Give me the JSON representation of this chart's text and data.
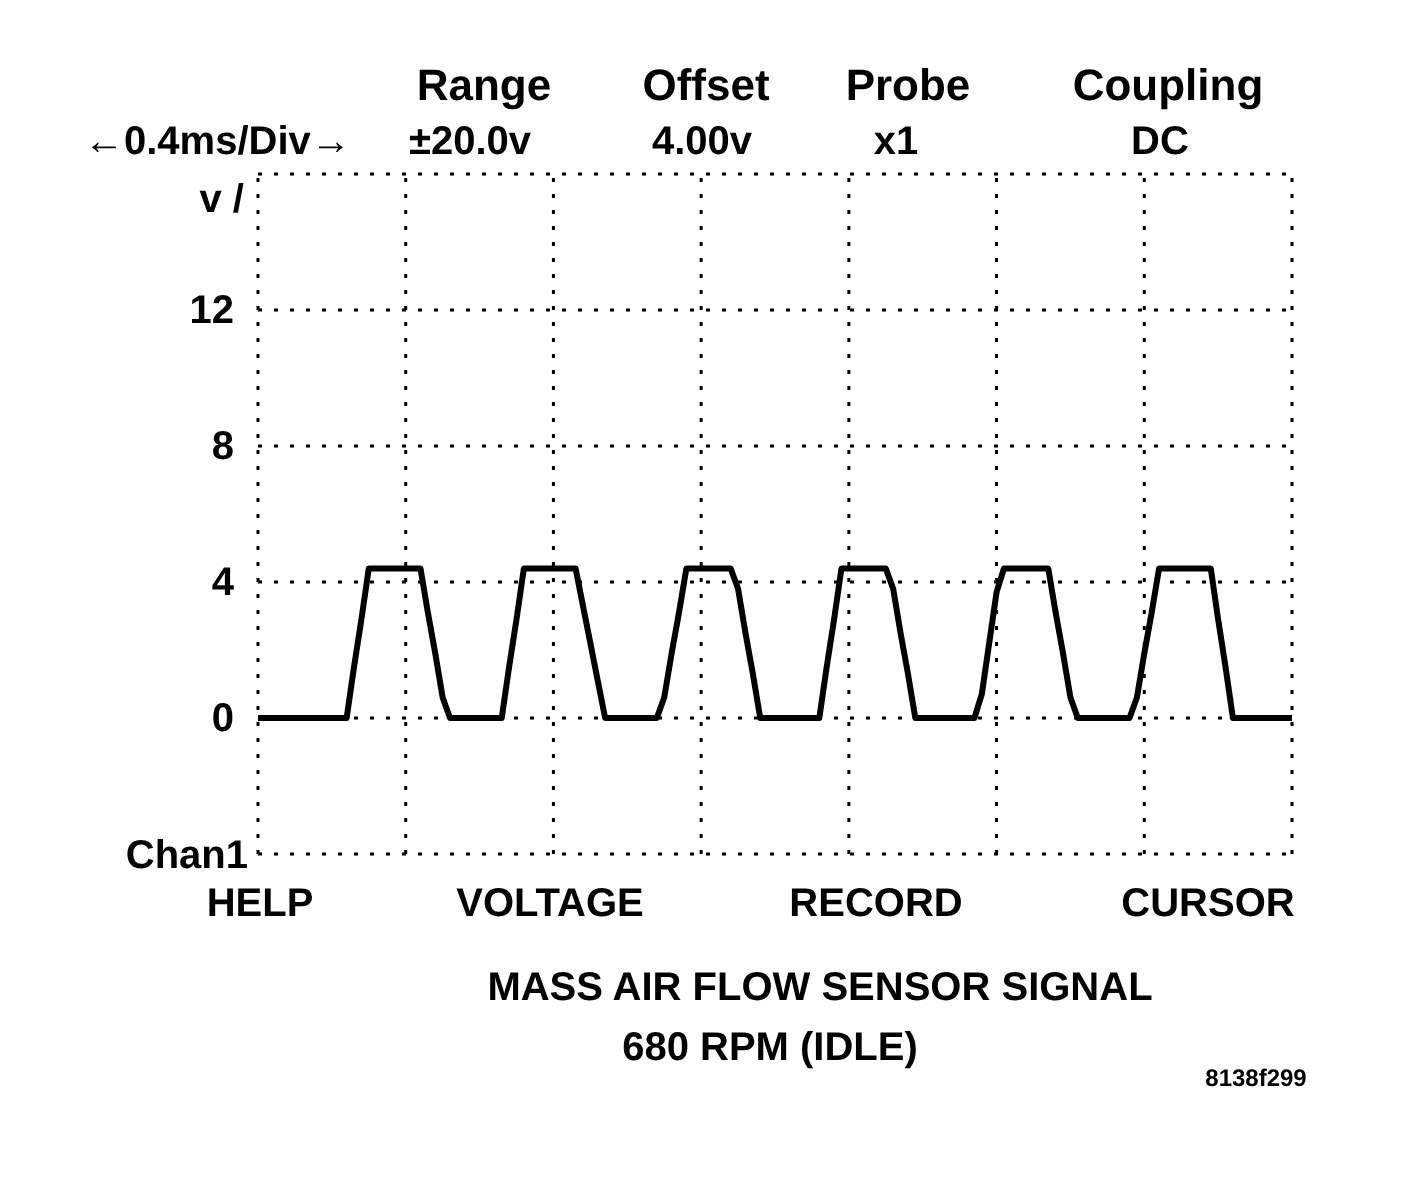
{
  "chart_data": {
    "type": "line",
    "title": "MASS AIR FLOW SENSOR SIGNAL",
    "subtitle": "680 RPM (IDLE)",
    "ylabel": "v /",
    "annotations": [
      "←0.4ms/Div→",
      "Range",
      "±20.0v",
      "Offset",
      "4.00v",
      "Probe",
      "x1",
      "Coupling",
      "DC",
      "Chan1",
      "HELP",
      "VOLTAGE",
      "RECORD",
      "CURSOR",
      "8138f299"
    ],
    "categories": [
      null,
      null,
      null,
      null,
      null,
      null,
      null,
      null,
      null,
      null,
      null,
      null,
      null,
      null,
      null,
      null,
      null,
      null,
      null,
      null,
      null,
      null,
      null,
      null,
      null,
      null,
      null,
      null,
      null,
      null,
      null,
      null,
      null,
      null,
      null,
      null,
      null,
      null,
      null,
      null,
      null,
      null,
      null,
      null,
      null,
      null,
      null,
      null,
      null,
      null,
      null,
      null,
      null,
      null,
      null,
      null,
      null,
      null,
      null,
      null,
      null,
      null,
      null,
      null,
      null,
      null,
      null,
      null,
      null,
      null,
      null,
      null,
      null,
      null,
      null,
      null,
      null,
      null,
      null,
      null,
      null,
      null,
      null,
      null,
      null,
      null,
      null,
      null,
      null,
      null,
      null,
      null,
      null,
      null,
      null,
      null,
      null,
      null,
      null,
      null,
      null,
      null,
      null,
      null,
      null,
      null,
      null,
      null,
      null,
      null,
      null,
      null,
      null,
      null,
      null,
      null,
      null,
      null,
      null,
      null,
      null,
      null,
      null,
      null,
      null,
      null,
      null,
      null,
      null,
      null,
      null,
      null,
      null,
      null,
      null,
      null,
      null,
      null,
      null,
      null,
      null
    ],
    "series": [
      {
        "color": "#000000",
        "values": [
          0,
          0,
          0,
          0,
          0,
          0,
          0,
          0,
          0,
          0,
          0,
          0,
          0,
          1.5,
          2.9,
          4.4,
          4.4,
          4.4,
          4.4,
          4.4,
          4.4,
          4.4,
          4.4,
          3.1,
          1.9,
          0.6,
          0,
          0,
          0,
          0,
          0,
          0,
          0,
          0,
          1.5,
          2.9,
          4.4,
          4.4,
          4.4,
          4.4,
          4.4,
          4.4,
          4.4,
          4.4,
          3.3,
          2.2,
          1.1,
          0,
          0,
          0,
          0,
          0,
          0,
          0,
          0,
          0.6,
          1.9,
          3.1,
          4.4,
          4.4,
          4.4,
          4.4,
          4.4,
          4.4,
          4.4,
          3.8,
          2.5,
          1.3,
          0,
          0,
          0,
          0,
          0,
          0,
          0,
          0,
          0,
          1.5,
          2.9,
          4.4,
          4.4,
          4.4,
          4.4,
          4.4,
          4.4,
          4.4,
          3.8,
          2.5,
          1.3,
          0,
          0,
          0,
          0,
          0,
          0,
          0,
          0,
          0,
          0.7,
          2.2,
          3.7,
          4.4,
          4.4,
          4.4,
          4.4,
          4.4,
          4.4,
          4.4,
          3.1,
          1.9,
          0.6,
          0,
          0,
          0,
          0,
          0,
          0,
          0,
          0,
          0.6,
          1.9,
          3.1,
          4.4,
          4.4,
          4.4,
          4.4,
          4.4,
          4.4,
          4.4,
          4.4,
          2.9,
          1.5,
          0,
          0,
          0,
          0,
          0,
          0,
          0,
          0,
          0
        ]
      }
    ],
    "ylim": [
      -4,
      16
    ],
    "yticks": [
      {
        "value": -4,
        "label": null
      },
      0,
      4,
      8,
      12,
      {
        "value": 16,
        "label": null
      }
    ],
    "tick_labels": "y",
    "grid": true,
    "marker": "none",
    "line_style": "solid"
  }
}
